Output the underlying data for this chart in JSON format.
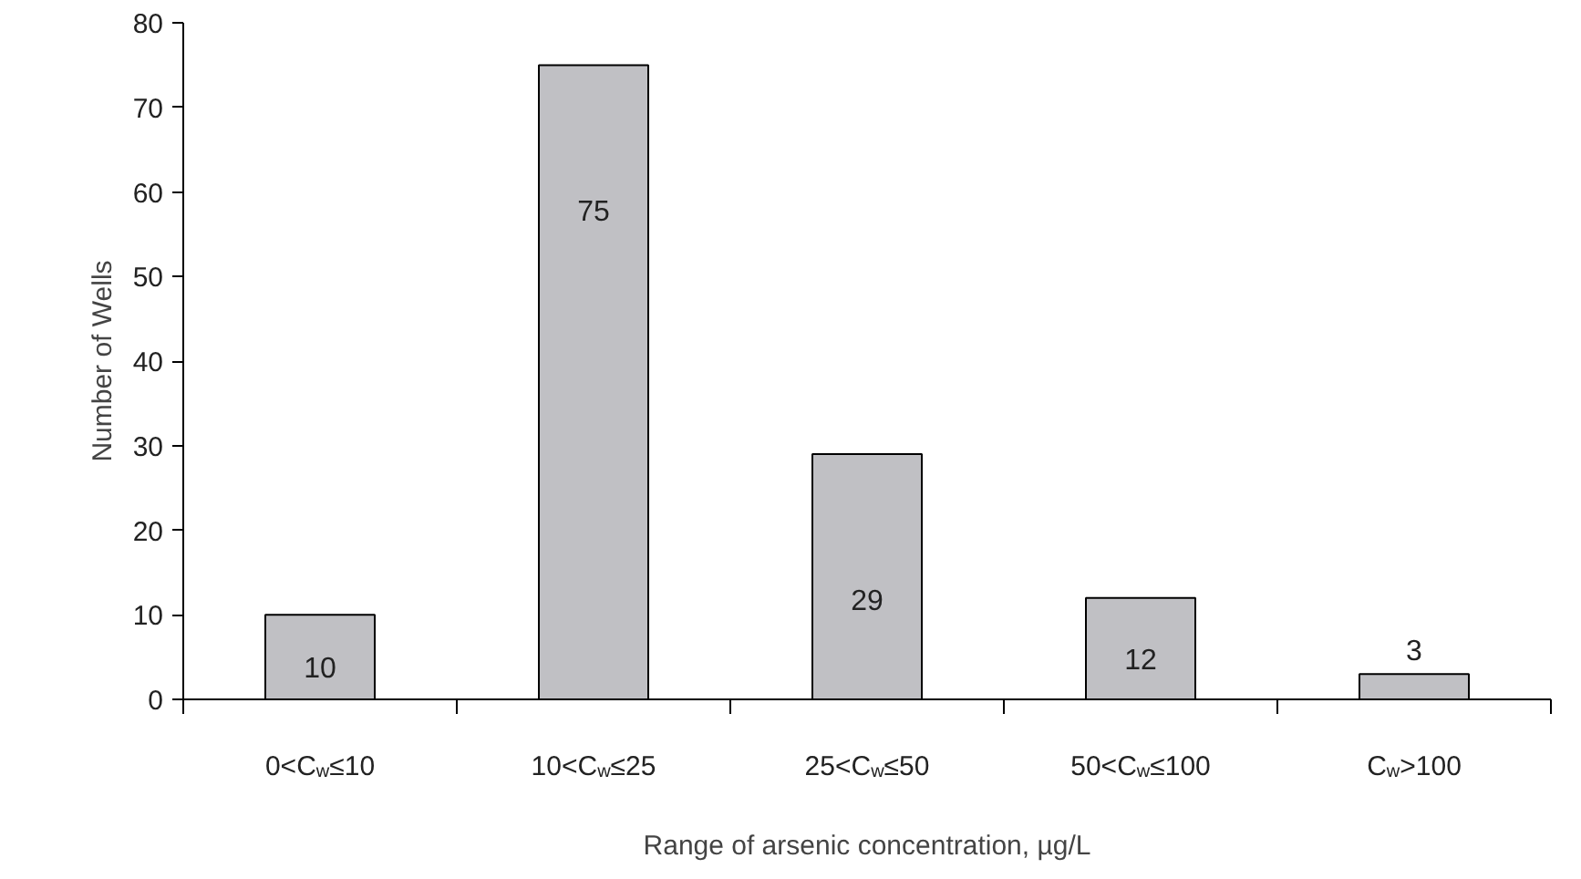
{
  "chart_data": {
    "type": "bar",
    "xlabel": "Range of arsenic concentration, µg/L",
    "ylabel": "Number of Wells",
    "categories": [
      "0<C$_{w}$≤10",
      "10<C$_{w}$≤25",
      "25<C$_{w}$≤50",
      "50<C$_{w}$≤100",
      "C$_{w}$>100"
    ],
    "values": [
      10,
      75,
      29,
      12,
      3
    ],
    "color": "#c0c0c4",
    "ylim": [
      0,
      80
    ],
    "yticks": [
      0,
      10,
      20,
      30,
      40,
      50,
      60,
      70,
      80
    ],
    "grid": false,
    "data_labels": true
  }
}
